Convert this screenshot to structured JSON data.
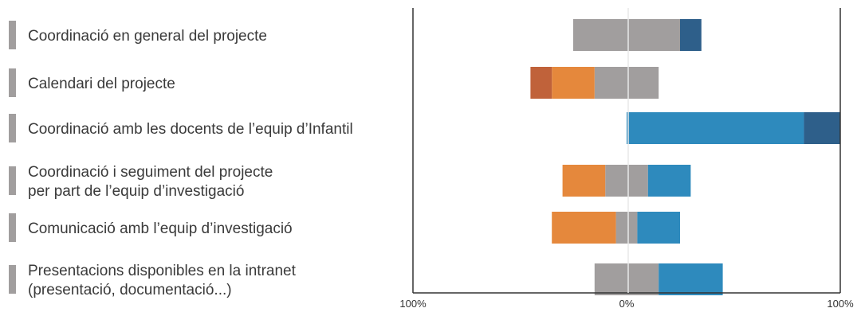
{
  "chart_data": {
    "type": "bar",
    "orientation": "horizontal",
    "stacked": "diverging",
    "categories": [
      [
        "Coordinació en general del projecte"
      ],
      [
        "Calendari del projecte"
      ],
      [
        "Coordinació amb les docents de l’equip d’Infantil"
      ],
      [
        "Coordinació i seguiment del projecte",
        "per part de l’equip d’investigació"
      ],
      [
        "Comunicació amb l’equip d’investigació"
      ],
      [
        "Presentacions disponibles en la intranet",
        "(presentació, documentació...)"
      ]
    ],
    "series": [
      {
        "color": "#c0623a",
        "values": [
          0,
          -10,
          0,
          0,
          0,
          0
        ]
      },
      {
        "color": "#e5883c",
        "values": [
          0,
          -20,
          0,
          -20,
          -30,
          0
        ]
      },
      {
        "color": "#a19e9e",
        "values": [
          -25,
          -15,
          0,
          -10,
          -5,
          -15
        ]
      },
      {
        "color": "#a19e9e",
        "values": [
          25,
          15,
          0,
          10,
          5,
          15
        ]
      },
      {
        "color": "#2e8abd",
        "values": [
          0,
          0,
          83,
          20,
          20,
          30
        ]
      },
      {
        "color": "#2e5f8a",
        "values": [
          10,
          0,
          17,
          0,
          0,
          0
        ]
      }
    ],
    "xlim": [
      -100,
      100
    ],
    "x_ticks": [
      "100%",
      "0%",
      "100%"
    ],
    "title": "",
    "xlabel": "",
    "ylabel": "",
    "legend": "none",
    "grid": false
  }
}
